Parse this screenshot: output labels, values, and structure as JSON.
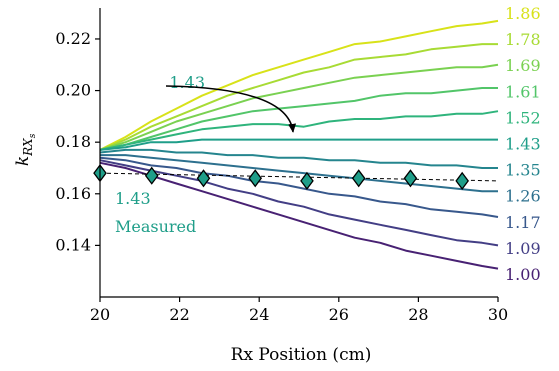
{
  "chart_data": {
    "type": "line",
    "xlabel": "Rx Position (cm)",
    "ylabel": "k",
    "ylabel_sub": "RX",
    "ylabel_subsub": "s",
    "xlim": [
      20,
      30
    ],
    "ylim": [
      0.12,
      0.232
    ],
    "xticks": [
      20,
      22,
      24,
      26,
      28,
      30
    ],
    "xtick_labels": [
      "20",
      "22",
      "24",
      "26",
      "28",
      "30"
    ],
    "yticks": [
      0.14,
      0.16,
      0.18,
      0.2,
      0.22
    ],
    "ytick_labels": [
      "0.14",
      "0.16",
      "0.18",
      "0.20",
      "0.22"
    ],
    "grid": false,
    "x": [
      20,
      20.64,
      21.28,
      21.92,
      22.56,
      23.2,
      23.84,
      24.48,
      25.12,
      25.76,
      26.4,
      27.04,
      27.68,
      28.32,
      28.96,
      29.6,
      30
    ],
    "series": [
      {
        "name": "1.86",
        "color": "#d8e219",
        "values": [
          0.177,
          0.182,
          0.188,
          0.193,
          0.198,
          0.202,
          0.206,
          0.209,
          0.212,
          0.215,
          0.218,
          0.219,
          0.221,
          0.223,
          0.225,
          0.226,
          0.227
        ]
      },
      {
        "name": "1.78",
        "color": "#a8db34",
        "values": [
          0.177,
          0.181,
          0.186,
          0.19,
          0.194,
          0.198,
          0.201,
          0.204,
          0.207,
          0.209,
          0.212,
          0.213,
          0.214,
          0.216,
          0.217,
          0.218,
          0.218
        ]
      },
      {
        "name": "1.69",
        "color": "#7ad151",
        "values": [
          0.177,
          0.18,
          0.184,
          0.188,
          0.191,
          0.194,
          0.197,
          0.199,
          0.201,
          0.203,
          0.205,
          0.206,
          0.207,
          0.208,
          0.209,
          0.209,
          0.21
        ]
      },
      {
        "name": "1.61",
        "color": "#52c569",
        "values": [
          0.177,
          0.179,
          0.182,
          0.185,
          0.188,
          0.19,
          0.192,
          0.193,
          0.194,
          0.195,
          0.196,
          0.198,
          0.199,
          0.199,
          0.2,
          0.201,
          0.201
        ]
      },
      {
        "name": "1.52",
        "color": "#2fb47c",
        "values": [
          0.177,
          0.179,
          0.181,
          0.183,
          0.185,
          0.186,
          0.187,
          0.187,
          0.186,
          0.188,
          0.189,
          0.189,
          0.19,
          0.19,
          0.191,
          0.191,
          0.192
        ]
      },
      {
        "name": "1.43",
        "color": "#1f9e89",
        "values": [
          0.177,
          0.178,
          0.18,
          0.18,
          0.181,
          0.181,
          0.181,
          0.181,
          0.181,
          0.181,
          0.181,
          0.181,
          0.181,
          0.181,
          0.181,
          0.181,
          0.181
        ]
      },
      {
        "name": "1.35",
        "color": "#25858e",
        "values": [
          0.176,
          0.177,
          0.177,
          0.176,
          0.176,
          0.175,
          0.175,
          0.174,
          0.174,
          0.173,
          0.173,
          0.172,
          0.172,
          0.171,
          0.171,
          0.17,
          0.17
        ]
      },
      {
        "name": "1.26",
        "color": "#2d708e",
        "values": [
          0.175,
          0.175,
          0.174,
          0.173,
          0.172,
          0.171,
          0.17,
          0.169,
          0.168,
          0.167,
          0.166,
          0.165,
          0.164,
          0.163,
          0.162,
          0.161,
          0.161
        ]
      },
      {
        "name": "1.17",
        "color": "#38588c",
        "values": [
          0.174,
          0.173,
          0.171,
          0.17,
          0.168,
          0.167,
          0.165,
          0.164,
          0.162,
          0.16,
          0.159,
          0.157,
          0.156,
          0.154,
          0.153,
          0.152,
          0.151
        ]
      },
      {
        "name": "1.09",
        "color": "#433e85",
        "values": [
          0.173,
          0.171,
          0.169,
          0.167,
          0.165,
          0.162,
          0.16,
          0.157,
          0.155,
          0.152,
          0.15,
          0.148,
          0.146,
          0.144,
          0.142,
          0.141,
          0.14
        ]
      },
      {
        "name": "1.00",
        "color": "#482173",
        "values": [
          0.172,
          0.17,
          0.167,
          0.164,
          0.161,
          0.158,
          0.155,
          0.152,
          0.149,
          0.146,
          0.143,
          0.141,
          0.138,
          0.136,
          0.134,
          0.132,
          0.131
        ]
      }
    ],
    "measured": {
      "label": "Measured",
      "value_label": "1.43",
      "color": "#1f9e89",
      "x": [
        20,
        21.3,
        22.6,
        23.9,
        25.2,
        26.5,
        27.8,
        29.1
      ],
      "y": [
        0.168,
        0.167,
        0.166,
        0.166,
        0.165,
        0.166,
        0.166,
        0.165
      ],
      "fit_x": [
        20,
        30
      ],
      "fit_y": [
        0.168,
        0.165
      ]
    },
    "annotations": [
      {
        "text": "1.43",
        "color": "#1f9e89",
        "arrow_from": [
          23.1,
          0.183
        ],
        "arrow_to": [
          24.9,
          0.181
        ]
      }
    ]
  }
}
